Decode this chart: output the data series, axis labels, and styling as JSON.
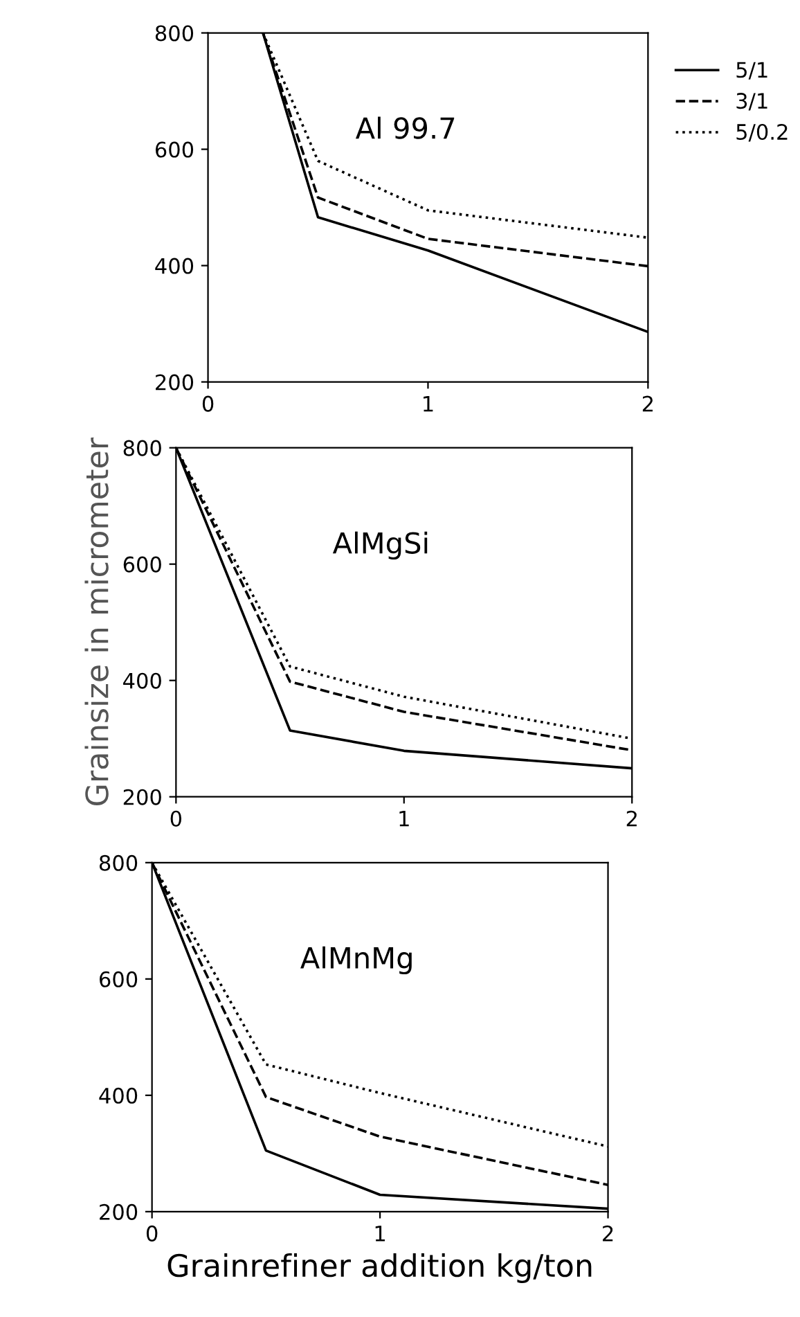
{
  "chart_data": [
    {
      "type": "line",
      "title": "Al 99.7",
      "xlim": [
        0,
        2
      ],
      "ylim": [
        200,
        800
      ],
      "xticks": [
        0,
        1,
        2
      ],
      "yticks": [
        200,
        400,
        600,
        800
      ],
      "legend": "right",
      "grid": false,
      "series": [
        {
          "name": "5/1",
          "color": "#000000",
          "line_style": "solid",
          "x": [
            0.25,
            0.5,
            1,
            2
          ],
          "values": [
            800,
            483,
            426,
            286
          ]
        },
        {
          "name": "3/1",
          "color": "#000000",
          "line_style": "dashed",
          "x": [
            0.25,
            0.5,
            1,
            2
          ],
          "values": [
            800,
            517,
            446,
            399
          ]
        },
        {
          "name": "5/0.2",
          "color": "#000000",
          "line_style": "dotted",
          "x": [
            0.25,
            0.5,
            1,
            2
          ],
          "values": [
            800,
            580,
            495,
            448
          ]
        }
      ]
    },
    {
      "type": "line",
      "title": "AlMgSi",
      "ylabel": "Grainsize in micrometer",
      "xlim": [
        0,
        2
      ],
      "ylim": [
        200,
        800
      ],
      "xticks": [
        0,
        1,
        2
      ],
      "yticks": [
        200,
        400,
        600,
        800
      ],
      "grid": false,
      "series": [
        {
          "color": "#000000",
          "line_style": "solid",
          "x": [
            0,
            0.5,
            1,
            2
          ],
          "values": [
            800,
            314,
            279,
            249
          ]
        },
        {
          "color": "#000000",
          "line_style": "dashed",
          "x": [
            0,
            0.5,
            1,
            2
          ],
          "values": [
            800,
            398,
            346,
            280
          ]
        },
        {
          "color": "#000000",
          "line_style": "dotted",
          "x": [
            0,
            0.5,
            1,
            2
          ],
          "values": [
            800,
            424,
            372,
            300
          ]
        }
      ]
    },
    {
      "type": "line",
      "title": "AlMnMg",
      "xlabel": "Grainrefiner addition kg/ton",
      "xlim": [
        0,
        2
      ],
      "ylim": [
        200,
        800
      ],
      "xticks": [
        0,
        1,
        2
      ],
      "yticks": [
        200,
        400,
        600,
        800
      ],
      "grid": false,
      "series": [
        {
          "color": "#000000",
          "line_style": "solid",
          "x": [
            0,
            0.5,
            1,
            2
          ],
          "values": [
            800,
            305,
            229,
            205
          ]
        },
        {
          "color": "#000000",
          "line_style": "dashed",
          "x": [
            0,
            0.5,
            1,
            2
          ],
          "values": [
            800,
            397,
            329,
            246
          ]
        },
        {
          "color": "#000000",
          "line_style": "dotted",
          "x": [
            0,
            0.5,
            1,
            2
          ],
          "values": [
            800,
            453,
            404,
            312
          ]
        }
      ]
    }
  ]
}
